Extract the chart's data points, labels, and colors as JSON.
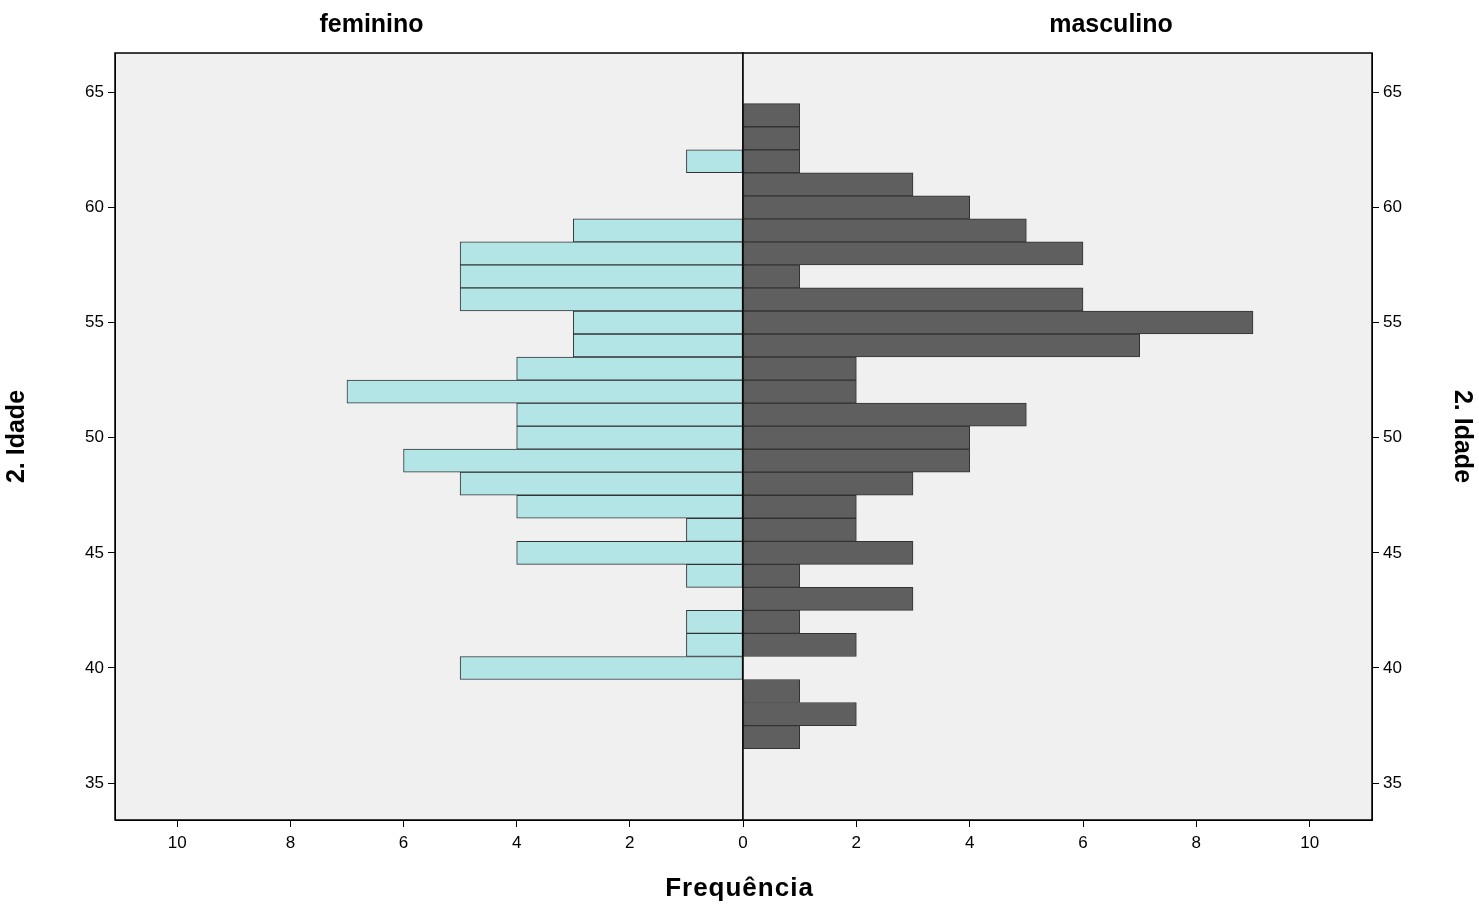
{
  "chart_data": [
    {
      "type": "histogram",
      "orientation": "horizontal",
      "title": "feminino",
      "xlabel": "Frequência",
      "ylabel": "2. Idade",
      "bins": [
        36.5,
        37.5,
        38.5,
        39.5,
        40.5,
        41.5,
        42.5,
        43.5,
        44.5,
        45.5,
        46.5,
        47.5,
        48.5,
        49.5,
        50.5,
        51.5,
        52.5,
        53.5,
        54.5,
        55.5,
        56.5,
        57.5,
        58.5,
        59.5,
        60.5,
        61.5,
        62.5,
        63.5,
        64.5
      ],
      "values": [
        0,
        0,
        0,
        5,
        1,
        1,
        0,
        1,
        4,
        1,
        4,
        5,
        6,
        4,
        4,
        7,
        4,
        3,
        3,
        5,
        5,
        5,
        3,
        0,
        0,
        1,
        0,
        0
      ],
      "color": "#b3e5e7",
      "xlim": [
        11.1,
        0
      ],
      "xticks": [
        {
          "value": 0,
          "label": null
        },
        2,
        4,
        6,
        8,
        10
      ],
      "ylim": [
        33.4,
        66.7
      ],
      "yticks": [
        35,
        40,
        45,
        50,
        55,
        60,
        65
      ],
      "grid": false
    },
    {
      "type": "histogram",
      "orientation": "horizontal",
      "title": "masculino",
      "ylabel": "2. Idade",
      "bins": [
        36.5,
        37.5,
        38.5,
        39.5,
        40.5,
        41.5,
        42.5,
        43.5,
        44.5,
        45.5,
        46.5,
        47.5,
        48.5,
        49.5,
        50.5,
        51.5,
        52.5,
        53.5,
        54.5,
        55.5,
        56.5,
        57.5,
        58.5,
        59.5,
        60.5,
        61.5,
        62.5,
        63.5,
        64.5
      ],
      "values": [
        1,
        2,
        1,
        0,
        2,
        1,
        3,
        1,
        3,
        2,
        2,
        3,
        4,
        4,
        5,
        2,
        2,
        7,
        9,
        6,
        1,
        6,
        5,
        4,
        3,
        1,
        1,
        1
      ],
      "color": "#5f5f5f",
      "xlim": [
        0,
        11.1
      ],
      "xticks": [
        0,
        2,
        4,
        6,
        8,
        10
      ],
      "ylim": [
        33.4,
        66.7
      ],
      "yticks": [
        35,
        40,
        45,
        50,
        55,
        60,
        65
      ],
      "grid": false
    }
  ]
}
